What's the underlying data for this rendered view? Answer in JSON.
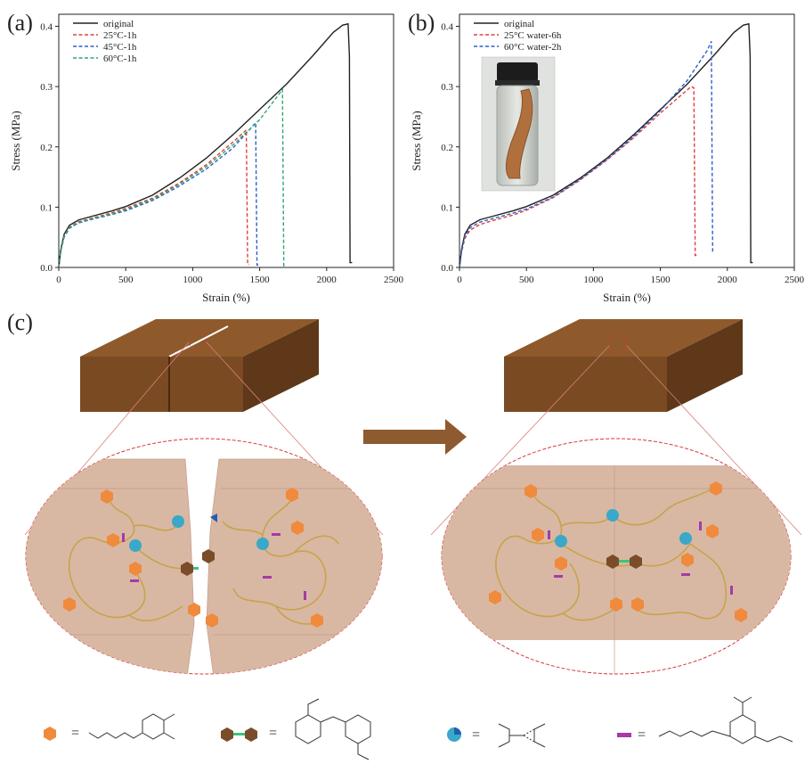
{
  "panels": {
    "a": "(a)",
    "b": "(b)",
    "c": "(c)"
  },
  "colors": {
    "original": "#222222",
    "red": "#e0403a",
    "blue": "#2f5fc6",
    "green": "#2fa86a",
    "block_top": "#8b5a2b",
    "block_front": "#7a4a22",
    "block_side": "#5e3818",
    "arrow": "#8e5a30",
    "gel": "#d9b8a4",
    "chain": "#c8a34a",
    "catechol": "#f08a3c",
    "disulfide_hex": "#7a4c2a",
    "hbond_ball": "#3aa8c8",
    "urethane": "#a63aa6",
    "dashed_ellipse": "#d63a3a"
  },
  "chart_data": [
    {
      "type": "line",
      "panel": "(a)",
      "xlabel": "Strain (%)",
      "ylabel": "Stress (MPa)",
      "xlim": [
        0,
        2500
      ],
      "ylim": [
        0,
        0.42
      ],
      "xticks": [
        0,
        500,
        1000,
        1500,
        2000,
        2500
      ],
      "yticks": [
        0.0,
        0.1,
        0.2,
        0.3,
        0.4
      ],
      "legend_position": "top-left",
      "series": [
        {
          "name": "original",
          "style": "solid",
          "color": "#222222",
          "x": [
            0,
            15,
            40,
            80,
            150,
            250,
            400,
            500,
            700,
            900,
            1100,
            1300,
            1500,
            1700,
            1900,
            2050,
            2120,
            2160,
            2170,
            2175,
            2190
          ],
          "y": [
            0,
            0.03,
            0.055,
            0.07,
            0.079,
            0.085,
            0.094,
            0.101,
            0.12,
            0.148,
            0.181,
            0.22,
            0.262,
            0.304,
            0.352,
            0.39,
            0.402,
            0.404,
            0.35,
            0.008,
            0.008
          ]
        },
        {
          "name": "25°C-1h",
          "style": "dashed",
          "color": "#e0403a",
          "x": [
            0,
            15,
            40,
            80,
            150,
            250,
            400,
            500,
            700,
            900,
            1100,
            1300,
            1400,
            1410,
            1420
          ],
          "y": [
            0,
            0.028,
            0.052,
            0.067,
            0.076,
            0.082,
            0.091,
            0.098,
            0.115,
            0.14,
            0.17,
            0.208,
            0.228,
            0.005,
            0.005
          ]
        },
        {
          "name": "45°C-1h",
          "style": "dashed",
          "color": "#2f5fc6",
          "x": [
            0,
            15,
            40,
            80,
            150,
            250,
            400,
            500,
            700,
            900,
            1100,
            1300,
            1470,
            1480,
            1490
          ],
          "y": [
            0,
            0.027,
            0.05,
            0.065,
            0.074,
            0.08,
            0.088,
            0.094,
            0.111,
            0.135,
            0.163,
            0.198,
            0.24,
            0.004,
            0.004
          ]
        },
        {
          "name": "60°C-1h",
          "style": "dashed",
          "color": "#2fa86a",
          "x": [
            0,
            15,
            40,
            80,
            150,
            250,
            400,
            500,
            700,
            900,
            1100,
            1300,
            1500,
            1670,
            1680,
            1690
          ],
          "y": [
            0,
            0.028,
            0.052,
            0.066,
            0.075,
            0.081,
            0.089,
            0.096,
            0.113,
            0.138,
            0.167,
            0.203,
            0.245,
            0.295,
            0.003,
            0.003
          ]
        }
      ]
    },
    {
      "type": "line",
      "panel": "(b)",
      "xlabel": "Strain (%)",
      "ylabel": "Stress (MPa)",
      "xlim": [
        0,
        2500
      ],
      "ylim": [
        0,
        0.42
      ],
      "xticks": [
        0,
        500,
        1000,
        1500,
        2000,
        2500
      ],
      "yticks": [
        0.0,
        0.1,
        0.2,
        0.3,
        0.4
      ],
      "legend_position": "top-left",
      "inset": "photo of healed sample in a vial",
      "series": [
        {
          "name": "original",
          "style": "solid",
          "color": "#222222",
          "x": [
            0,
            15,
            40,
            80,
            150,
            250,
            400,
            500,
            700,
            900,
            1100,
            1300,
            1500,
            1700,
            1900,
            2050,
            2120,
            2160,
            2170,
            2175,
            2190
          ],
          "y": [
            0,
            0.03,
            0.055,
            0.07,
            0.079,
            0.085,
            0.094,
            0.101,
            0.12,
            0.148,
            0.181,
            0.22,
            0.262,
            0.304,
            0.352,
            0.39,
            0.402,
            0.404,
            0.35,
            0.008,
            0.008
          ]
        },
        {
          "name": "25°C water-6h",
          "style": "dashed",
          "color": "#e0403a",
          "x": [
            0,
            15,
            40,
            80,
            150,
            250,
            400,
            500,
            700,
            900,
            1100,
            1300,
            1500,
            1650,
            1730,
            1750,
            1760,
            1770
          ],
          "y": [
            0,
            0.025,
            0.048,
            0.062,
            0.071,
            0.078,
            0.087,
            0.095,
            0.116,
            0.145,
            0.178,
            0.215,
            0.256,
            0.285,
            0.3,
            0.298,
            0.02,
            0.02
          ]
        },
        {
          "name": "60°C water-2h",
          "style": "dashed",
          "color": "#2f5fc6",
          "x": [
            0,
            15,
            40,
            80,
            150,
            250,
            400,
            500,
            700,
            900,
            1100,
            1300,
            1500,
            1700,
            1850,
            1880,
            1890,
            1895
          ],
          "y": [
            0,
            0.028,
            0.052,
            0.066,
            0.075,
            0.081,
            0.09,
            0.097,
            0.117,
            0.146,
            0.179,
            0.217,
            0.26,
            0.31,
            0.36,
            0.375,
            0.025,
            0.025
          ]
        }
      ]
    }
  ],
  "scheme": {
    "equals": "="
  }
}
